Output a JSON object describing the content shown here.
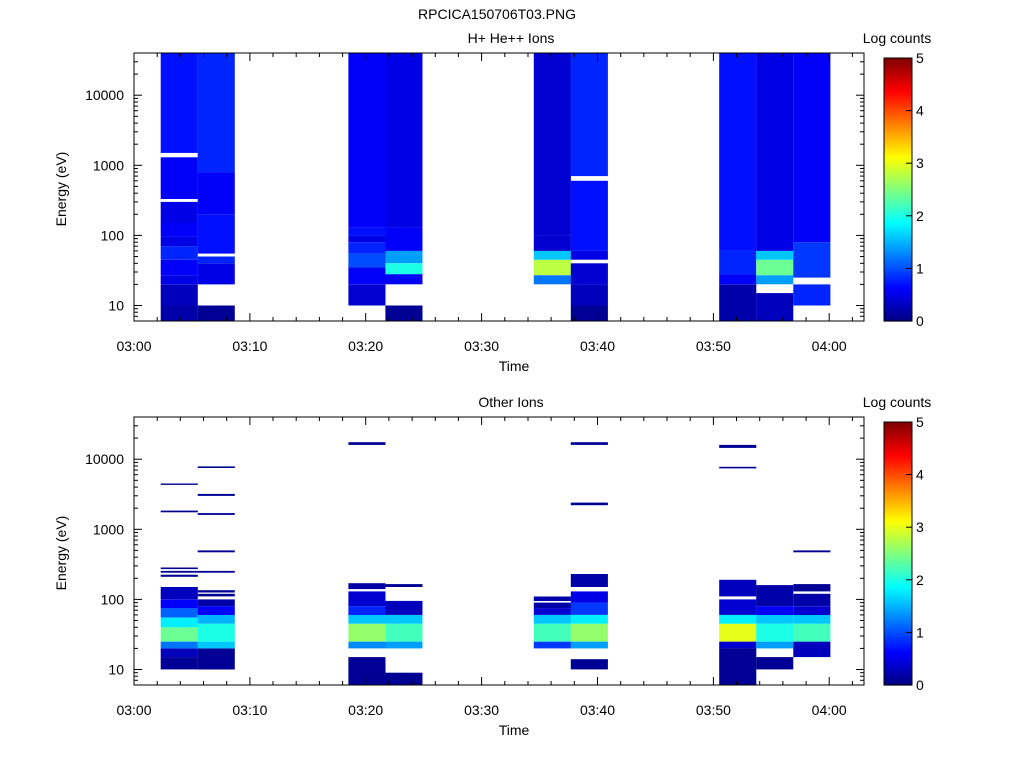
{
  "figure_title": "RPCICA150706T03.PNG",
  "colorbar_ticks": [
    "0",
    "1",
    "2",
    "3",
    "4",
    "5"
  ],
  "chart_data": [
    {
      "type": "heatmap",
      "title": "H+ He++ Ions",
      "xlabel": "Time",
      "ylabel": "Energy (eV)",
      "yscale": "log",
      "ylim": [
        6,
        40000
      ],
      "xlim": [
        "03:00",
        "04:03"
      ],
      "x_ticks": [
        "03:00",
        "03:10",
        "03:20",
        "03:30",
        "03:40",
        "03:50",
        "04:00"
      ],
      "y_ticks": [
        "10",
        "100",
        "1000",
        "10000"
      ],
      "colorbar": {
        "label": "Log counts",
        "range": [
          0,
          5
        ],
        "colormap": "jet"
      },
      "time_bins": [
        {
          "start": "03:02.3",
          "end": "03:05.5",
          "values": [
            [
              6,
              10,
              0.2
            ],
            [
              10,
              20,
              0.3
            ],
            [
              20,
              27,
              0.5
            ],
            [
              27,
              45,
              0.6
            ],
            [
              45,
              70,
              0.8
            ],
            [
              70,
              95,
              0.5
            ],
            [
              95,
              150,
              0.6
            ],
            [
              150,
              300,
              0.5
            ],
            [
              300,
              330,
              null
            ],
            [
              330,
              1300,
              0.6
            ],
            [
              1300,
              1500,
              null
            ],
            [
              1500,
              40000,
              0.7
            ]
          ]
        },
        {
          "start": "03:05.5",
          "end": "03:08.7",
          "values": [
            [
              6,
              10,
              0.1
            ],
            [
              10,
              20,
              null
            ],
            [
              20,
              40,
              0.5
            ],
            [
              40,
              50,
              0.8
            ],
            [
              50,
              55,
              null
            ],
            [
              55,
              200,
              0.7
            ],
            [
              200,
              800,
              0.6
            ],
            [
              800,
              40000,
              0.8
            ]
          ]
        },
        {
          "start": "03:18.5",
          "end": "03:21.7",
          "values": [
            [
              10,
              20,
              0.4
            ],
            [
              20,
              35,
              0.6
            ],
            [
              35,
              55,
              1.0
            ],
            [
              55,
              80,
              0.8
            ],
            [
              80,
              100,
              0.5
            ],
            [
              100,
              130,
              0.7
            ],
            [
              130,
              40000,
              0.6
            ]
          ]
        },
        {
          "start": "03:21.7",
          "end": "03:24.9",
          "values": [
            [
              6,
              10,
              0.1
            ],
            [
              10,
              20,
              null
            ],
            [
              20,
              28,
              0.6
            ],
            [
              28,
              40,
              2.0
            ],
            [
              40,
              60,
              1.4
            ],
            [
              60,
              130,
              0.6
            ],
            [
              130,
              40000,
              0.5
            ]
          ]
        },
        {
          "start": "03:34.5",
          "end": "03:37.7",
          "values": [
            [
              20,
              27,
              1.2
            ],
            [
              27,
              45,
              2.8
            ],
            [
              45,
              60,
              1.6
            ],
            [
              60,
              100,
              0.4
            ],
            [
              100,
              40000,
              0.4
            ]
          ]
        },
        {
          "start": "03:37.7",
          "end": "03:40.9",
          "values": [
            [
              6,
              10,
              0.1
            ],
            [
              10,
              20,
              0.3
            ],
            [
              20,
              40,
              0.4
            ],
            [
              40,
              45,
              null
            ],
            [
              45,
              60,
              0.5
            ],
            [
              60,
              600,
              0.7
            ],
            [
              600,
              700,
              null
            ],
            [
              700,
              40000,
              0.8
            ]
          ]
        },
        {
          "start": "03:50.5",
          "end": "03:53.7",
          "values": [
            [
              6,
              20,
              0.2
            ],
            [
              20,
              28,
              0.6
            ],
            [
              28,
              60,
              0.8
            ],
            [
              60,
              40000,
              0.7
            ]
          ]
        },
        {
          "start": "03:53.7",
          "end": "03:56.9",
          "values": [
            [
              6,
              15,
              0.3
            ],
            [
              15,
              20,
              null
            ],
            [
              20,
              27,
              1.4
            ],
            [
              27,
              45,
              2.4
            ],
            [
              45,
              60,
              1.6
            ],
            [
              60,
              40000,
              0.5
            ]
          ]
        },
        {
          "start": "03:56.9",
          "end": "04:00.1",
          "values": [
            [
              10,
              20,
              0.8
            ],
            [
              20,
              25,
              null
            ],
            [
              25,
              80,
              0.9
            ],
            [
              80,
              40000,
              0.6
            ]
          ]
        }
      ]
    },
    {
      "type": "heatmap",
      "title": "Other Ions",
      "xlabel": "Time",
      "ylabel": "Energy (eV)",
      "yscale": "log",
      "ylim": [
        6,
        40000
      ],
      "xlim": [
        "03:00",
        "04:03"
      ],
      "x_ticks": [
        "03:00",
        "03:10",
        "03:20",
        "03:30",
        "03:40",
        "03:50",
        "04:00"
      ],
      "y_ticks": [
        "10",
        "100",
        "1000",
        "10000"
      ],
      "colorbar": {
        "label": "Log counts",
        "range": [
          0,
          5
        ],
        "colormap": "jet"
      },
      "time_bins": [
        {
          "start": "03:02.3",
          "end": "03:05.5",
          "values": [
            [
              10,
              15,
              0.1
            ],
            [
              15,
              20,
              0.3
            ],
            [
              20,
              25,
              1.2
            ],
            [
              25,
              40,
              2.4
            ],
            [
              40,
              55,
              1.8
            ],
            [
              55,
              75,
              1.1
            ],
            [
              75,
              100,
              0.6
            ],
            [
              100,
              150,
              0.3
            ],
            [
              4300,
              4500,
              0.1
            ],
            [
              1750,
              1850,
              0.1
            ],
            [
              270,
              285,
              0.1
            ],
            [
              240,
              255,
              0.1
            ],
            [
              210,
              225,
              0.1
            ]
          ]
        },
        {
          "start": "03:05.5",
          "end": "03:08.7",
          "values": [
            [
              10,
              20,
              0.1
            ],
            [
              20,
              25,
              1.6
            ],
            [
              25,
              45,
              2.0
            ],
            [
              45,
              60,
              1.5
            ],
            [
              60,
              80,
              0.6
            ],
            [
              80,
              100,
              0.2
            ],
            [
              110,
              120,
              0.1
            ],
            [
              125,
              135,
              0.1
            ],
            [
              7500,
              7900,
              0.1
            ],
            [
              3000,
              3200,
              0.1
            ],
            [
              1600,
              1700,
              0.1
            ],
            [
              470,
              500,
              0.1
            ],
            [
              240,
              255,
              0.1
            ]
          ]
        },
        {
          "start": "03:18.5",
          "end": "03:21.7",
          "values": [
            [
              6,
              15,
              0.1
            ],
            [
              20,
              25,
              1.3
            ],
            [
              25,
              45,
              2.6
            ],
            [
              45,
              60,
              1.6
            ],
            [
              60,
              80,
              0.8
            ],
            [
              80,
              130,
              0.4
            ],
            [
              140,
              170,
              0.2
            ],
            [
              16000,
              17500,
              0.1
            ]
          ]
        },
        {
          "start": "03:21.7",
          "end": "03:24.9",
          "values": [
            [
              6,
              9,
              0.1
            ],
            [
              20,
              25,
              1.4
            ],
            [
              25,
              45,
              2.2
            ],
            [
              45,
              60,
              1.6
            ],
            [
              60,
              95,
              0.3
            ],
            [
              150,
              165,
              0.1
            ]
          ]
        },
        {
          "start": "03:34.5",
          "end": "03:37.7",
          "values": [
            [
              20,
              25,
              0.9
            ],
            [
              25,
              45,
              2.2
            ],
            [
              45,
              60,
              1.6
            ],
            [
              60,
              75,
              0.4
            ],
            [
              75,
              90,
              0.2
            ],
            [
              95,
              110,
              0.2
            ]
          ]
        },
        {
          "start": "03:37.7",
          "end": "03:40.9",
          "values": [
            [
              10,
              14,
              0.1
            ],
            [
              20,
              25,
              1.4
            ],
            [
              25,
              45,
              2.6
            ],
            [
              45,
              60,
              1.8
            ],
            [
              60,
              90,
              0.9
            ],
            [
              90,
              130,
              0.5
            ],
            [
              150,
              230,
              0.2
            ],
            [
              2200,
              2400,
              0.1
            ],
            [
              16000,
              17500,
              0.1
            ]
          ]
        },
        {
          "start": "03:50.5",
          "end": "03:53.7",
          "values": [
            [
              6,
              20,
              0.1
            ],
            [
              20,
              25,
              0.4
            ],
            [
              25,
              45,
              3.0
            ],
            [
              45,
              60,
              1.8
            ],
            [
              60,
              100,
              0.4
            ],
            [
              110,
              190,
              0.3
            ],
            [
              7400,
              7800,
              0.1
            ],
            [
              14500,
              16000,
              0.1
            ]
          ]
        },
        {
          "start": "03:53.7",
          "end": "03:56.9",
          "values": [
            [
              10,
              15,
              0.1
            ],
            [
              20,
              25,
              1.4
            ],
            [
              25,
              45,
              2.0
            ],
            [
              45,
              60,
              1.6
            ],
            [
              60,
              80,
              0.6
            ],
            [
              80,
              160,
              0.2
            ]
          ]
        },
        {
          "start": "03:56.9",
          "end": "04:00.1",
          "values": [
            [
              15,
              25,
              0.3
            ],
            [
              25,
              45,
              2.2
            ],
            [
              45,
              60,
              1.6
            ],
            [
              60,
              80,
              0.4
            ],
            [
              80,
              120,
              0.2
            ],
            [
              130,
              165,
              0.1
            ],
            [
              470,
              500,
              0.1
            ]
          ]
        }
      ]
    }
  ]
}
